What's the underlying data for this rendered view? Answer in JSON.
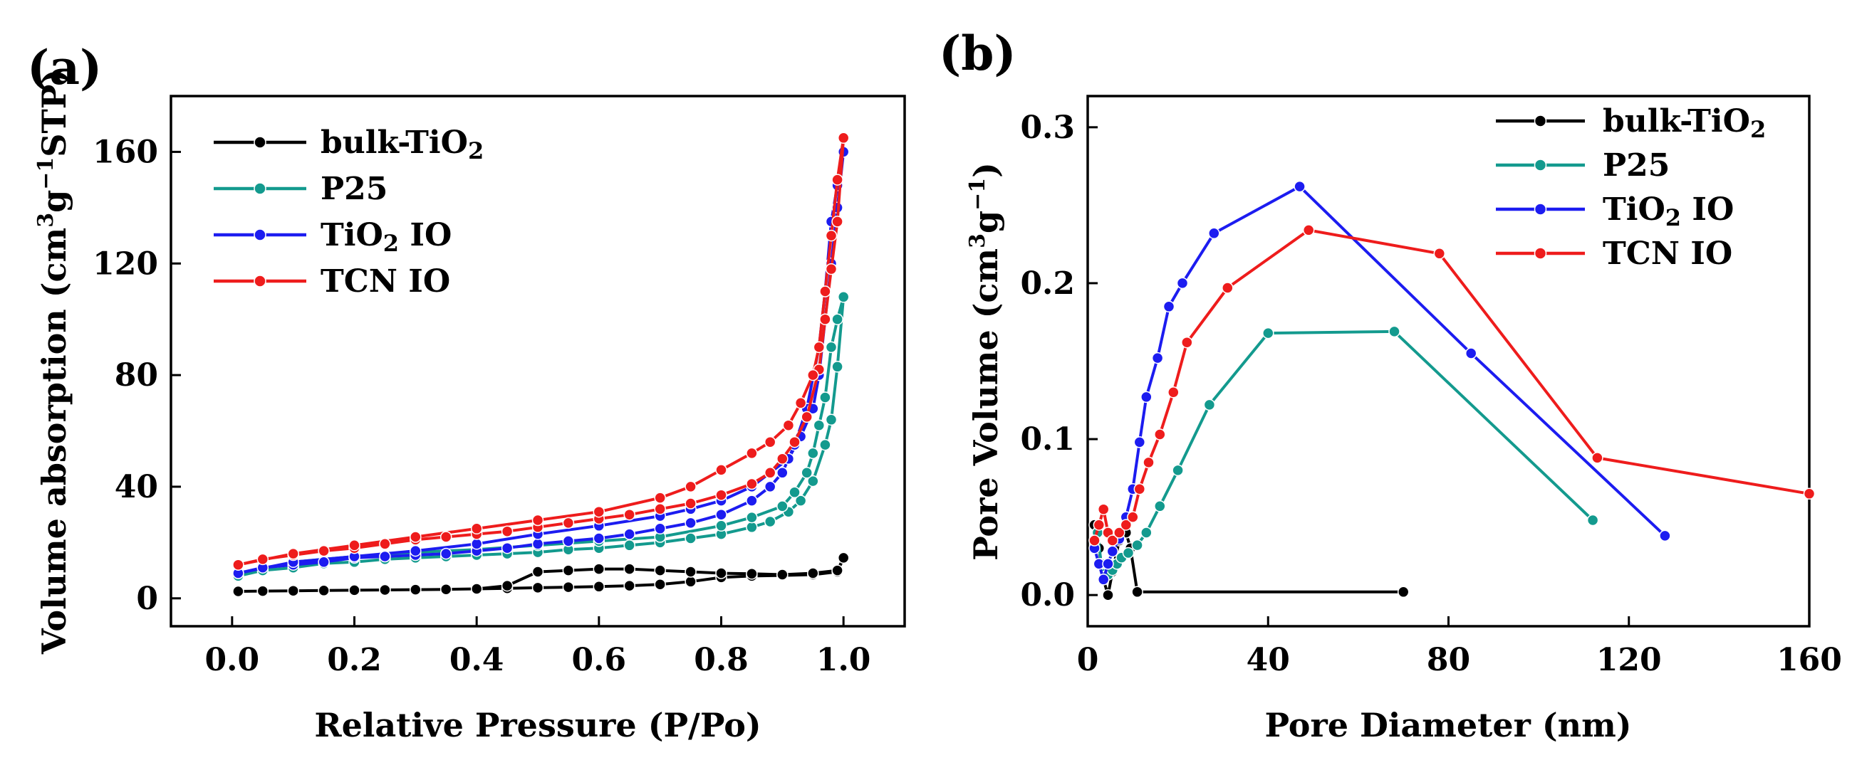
{
  "chart_data": [
    {
      "panel": "(a)",
      "type": "line",
      "xlabel": "Relative Pressure (P/Po)",
      "ylabel_main": "Volume absorption (cm",
      "ylabel_sup1": "3",
      "ylabel_mid": "g",
      "ylabel_sup2": "−1",
      "ylabel_end": "STP)",
      "xlim": [
        -0.1,
        1.1
      ],
      "ylim": [
        -10,
        180
      ],
      "xticks": [
        "0.0",
        "0.2",
        "0.4",
        "0.6",
        "0.8",
        "1.0"
      ],
      "xtick_values": [
        0,
        0.2,
        0.4,
        0.6,
        0.8,
        1.0
      ],
      "yticks": [
        "0",
        "40",
        "80",
        "120",
        "160"
      ],
      "ytick_values": [
        0,
        40,
        80,
        120,
        160
      ],
      "legend_position": "top-left",
      "series": [
        {
          "name": "bulk-TiO",
          "sub": "2",
          "color": "#000000",
          "x": [
            0.01,
            0.05,
            0.1,
            0.15,
            0.2,
            0.25,
            0.3,
            0.35,
            0.4,
            0.45,
            0.5,
            0.55,
            0.6,
            0.65,
            0.7,
            0.75,
            0.8,
            0.85,
            0.9,
            0.95,
            0.99,
            1.0,
            0.99,
            0.95,
            0.9,
            0.85,
            0.8,
            0.75,
            0.7,
            0.65,
            0.6,
            0.55,
            0.5,
            0.45,
            0.4,
            0.35,
            0.3,
            0.25,
            0.2,
            0.15,
            0.1,
            0.05,
            0.01
          ],
          "y": [
            2.5,
            2.6,
            2.7,
            2.8,
            2.9,
            3.0,
            3.1,
            3.2,
            3.4,
            3.6,
            3.8,
            4.0,
            4.2,
            4.5,
            5.0,
            6.0,
            7.5,
            8.0,
            8.2,
            8.5,
            9.5,
            14.5,
            10.0,
            9.0,
            8.5,
            8.8,
            9.0,
            9.5,
            10.0,
            10.5,
            10.5,
            10.0,
            9.5,
            4.5,
            3.4,
            3.2,
            3.1,
            3.0,
            2.9,
            2.8,
            2.7,
            2.6,
            2.5
          ]
        },
        {
          "name": "P25",
          "sub": "",
          "color": "#139a8e",
          "x": [
            0.01,
            0.05,
            0.1,
            0.15,
            0.2,
            0.25,
            0.3,
            0.35,
            0.4,
            0.45,
            0.5,
            0.55,
            0.6,
            0.65,
            0.7,
            0.75,
            0.8,
            0.85,
            0.88,
            0.91,
            0.93,
            0.95,
            0.97,
            0.98,
            0.99,
            1.0,
            0.99,
            0.98,
            0.97,
            0.96,
            0.95,
            0.94,
            0.92,
            0.9,
            0.85,
            0.8,
            0.7,
            0.6,
            0.5,
            0.4,
            0.3,
            0.2,
            0.1,
            0.01
          ],
          "y": [
            8,
            10,
            11,
            12.5,
            13,
            14,
            14.5,
            15,
            15.5,
            16,
            16.5,
            17.5,
            18,
            19,
            20,
            21.5,
            23,
            25.5,
            27.5,
            31,
            35,
            42,
            55,
            64,
            83,
            108,
            100,
            90,
            72,
            62,
            52,
            45,
            38,
            33,
            29,
            26,
            22,
            20.5,
            19,
            17.5,
            16.5,
            15,
            13,
            8
          ]
        },
        {
          "name": "TiO",
          "sub": "2",
          "name_suffix": " IO",
          "color": "#1c1cf0",
          "x": [
            0.01,
            0.05,
            0.1,
            0.15,
            0.2,
            0.25,
            0.3,
            0.35,
            0.4,
            0.45,
            0.5,
            0.55,
            0.6,
            0.65,
            0.7,
            0.75,
            0.8,
            0.85,
            0.88,
            0.9,
            0.92,
            0.94,
            0.96,
            0.97,
            0.98,
            0.99,
            1.0,
            0.99,
            0.98,
            0.97,
            0.96,
            0.95,
            0.93,
            0.91,
            0.88,
            0.85,
            0.8,
            0.75,
            0.7,
            0.6,
            0.5,
            0.4,
            0.3,
            0.2,
            0.1,
            0.01
          ],
          "y": [
            9,
            11,
            12,
            13,
            14.5,
            15,
            15.5,
            16,
            17,
            18,
            19.5,
            20.5,
            21.5,
            23,
            25,
            27,
            30,
            35,
            40,
            45,
            55,
            68,
            90,
            110,
            135,
            148,
            160,
            140,
            120,
            100,
            80,
            68,
            58,
            50,
            45,
            40,
            35,
            32,
            29.5,
            26,
            23,
            19.5,
            17,
            15,
            13,
            9
          ]
        },
        {
          "name": "TCN IO",
          "sub": "",
          "color": "#ee1c1c",
          "x": [
            0.01,
            0.05,
            0.1,
            0.15,
            0.2,
            0.25,
            0.3,
            0.35,
            0.4,
            0.45,
            0.5,
            0.55,
            0.6,
            0.65,
            0.7,
            0.75,
            0.8,
            0.85,
            0.88,
            0.9,
            0.92,
            0.94,
            0.96,
            0.97,
            0.98,
            0.99,
            1.0,
            0.99,
            0.98,
            0.97,
            0.96,
            0.95,
            0.93,
            0.91,
            0.88,
            0.85,
            0.8,
            0.75,
            0.7,
            0.6,
            0.5,
            0.4,
            0.3,
            0.2,
            0.1,
            0.01
          ],
          "y": [
            12,
            14,
            15.5,
            17,
            18,
            19.5,
            21,
            22,
            23,
            24,
            25.5,
            27,
            28.5,
            30,
            32,
            34,
            37,
            41,
            45,
            50,
            56,
            65,
            82,
            100,
            118,
            135,
            165,
            150,
            130,
            110,
            90,
            80,
            70,
            62,
            56,
            52,
            46,
            40,
            36,
            31,
            28,
            25,
            22,
            19,
            16,
            12
          ]
        }
      ]
    },
    {
      "panel": "(b)",
      "type": "line",
      "xlabel": "Pore Diameter (nm)",
      "ylabel_main": "Pore Volume (cm",
      "ylabel_sup1": "3",
      "ylabel_mid": "g",
      "ylabel_sup2": "−1",
      "ylabel_end": ")",
      "xlim": [
        0,
        160
      ],
      "ylim": [
        -0.02,
        0.32
      ],
      "xticks": [
        "0",
        "40",
        "80",
        "120",
        "160"
      ],
      "xtick_values": [
        0,
        40,
        80,
        120,
        160
      ],
      "yticks": [
        "0.0",
        "0.1",
        "0.2",
        "0.3"
      ],
      "ytick_values": [
        0,
        0.1,
        0.2,
        0.3
      ],
      "legend_position": "top-right",
      "series": [
        {
          "name": "bulk-TiO",
          "sub": "2",
          "color": "#000000",
          "x": [
            1.5,
            2.5,
            3.5,
            4.5,
            5.5,
            7,
            8.5,
            9.5,
            11,
            70
          ],
          "y": [
            0.045,
            0.03,
            0.01,
            0.0,
            0.015,
            0.035,
            0.04,
            0.03,
            0.002,
            0.002
          ]
        },
        {
          "name": "P25",
          "sub": "",
          "color": "#139a8e",
          "x": [
            1.5,
            2.2,
            3,
            3.8,
            4.5,
            5.5,
            6.5,
            7.5,
            9,
            11,
            13,
            16,
            20,
            27,
            40,
            68,
            112
          ],
          "y": [
            0.035,
            0.04,
            0.02,
            0.012,
            0.013,
            0.016,
            0.02,
            0.024,
            0.027,
            0.032,
            0.04,
            0.057,
            0.08,
            0.122,
            0.168,
            0.169,
            0.048
          ]
        },
        {
          "name": "TiO",
          "sub": "2",
          "name_suffix": " IO",
          "color": "#1c1cf0",
          "x": [
            1.5,
            2.5,
            3.5,
            4.5,
            5.5,
            7,
            8.5,
            10,
            11.5,
            13,
            15.5,
            18,
            21,
            28,
            47,
            85,
            128
          ],
          "y": [
            0.03,
            0.02,
            0.01,
            0.02,
            0.028,
            0.036,
            0.05,
            0.068,
            0.098,
            0.127,
            0.152,
            0.185,
            0.2,
            0.232,
            0.262,
            0.155,
            0.038
          ]
        },
        {
          "name": "TCN IO",
          "sub": "",
          "color": "#ee1c1c",
          "x": [
            1.5,
            2.5,
            3.5,
            4.5,
            5.5,
            7,
            8.5,
            10,
            11.5,
            13.5,
            16,
            19,
            22,
            31,
            49,
            78,
            113,
            160
          ],
          "y": [
            0.035,
            0.045,
            0.055,
            0.04,
            0.035,
            0.04,
            0.045,
            0.05,
            0.068,
            0.085,
            0.103,
            0.13,
            0.162,
            0.197,
            0.234,
            0.219,
            0.088,
            0.065
          ]
        }
      ]
    }
  ]
}
